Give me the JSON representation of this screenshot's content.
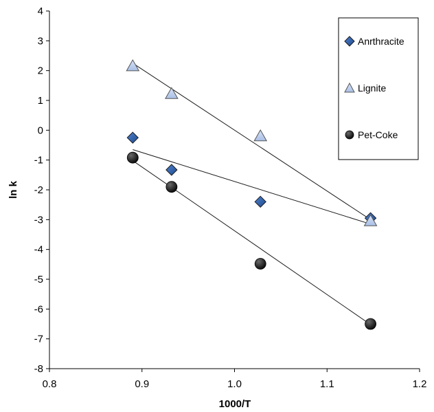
{
  "chart_data": {
    "type": "scatter",
    "xlabel": "1000/T",
    "ylabel": "ln k",
    "xlim": [
      0.8,
      1.2
    ],
    "ylim": [
      -8,
      4
    ],
    "xticks": [
      "0.8",
      "0.9",
      "1.0",
      "1.1",
      "1.2"
    ],
    "yticks": [
      "4",
      "3",
      "2",
      "1",
      "0",
      "-1",
      "-2",
      "-3",
      "-4",
      "-5",
      "-6",
      "-7",
      "-8"
    ],
    "grid": false,
    "legend_position": "top-right",
    "series": [
      {
        "name": "Anrthracite",
        "marker": "diamond",
        "color": "#2e5fa8",
        "x": [
          0.89,
          0.932,
          1.028,
          1.147
        ],
        "y": [
          -0.25,
          -1.33,
          -2.4,
          -2.95
        ],
        "trendline": {
          "x": [
            0.89,
            1.147
          ],
          "y": [
            -0.65,
            -3.15
          ]
        }
      },
      {
        "name": "Lignite",
        "marker": "triangle",
        "color": "#b3c7ea",
        "x": [
          0.89,
          0.932,
          1.028,
          1.147
        ],
        "y": [
          2.15,
          1.22,
          -0.2,
          -3.05
        ],
        "trendline": {
          "x": [
            0.89,
            1.147
          ],
          "y": [
            2.25,
            -3.0
          ]
        }
      },
      {
        "name": "Pet-Coke",
        "marker": "circle",
        "color": "#1a1a1a",
        "x": [
          0.89,
          0.932,
          1.028,
          1.147
        ],
        "y": [
          -0.92,
          -1.9,
          -4.48,
          -6.5
        ],
        "trendline": {
          "x": [
            0.89,
            1.147
          ],
          "y": [
            -1.02,
            -6.52
          ]
        }
      }
    ]
  }
}
